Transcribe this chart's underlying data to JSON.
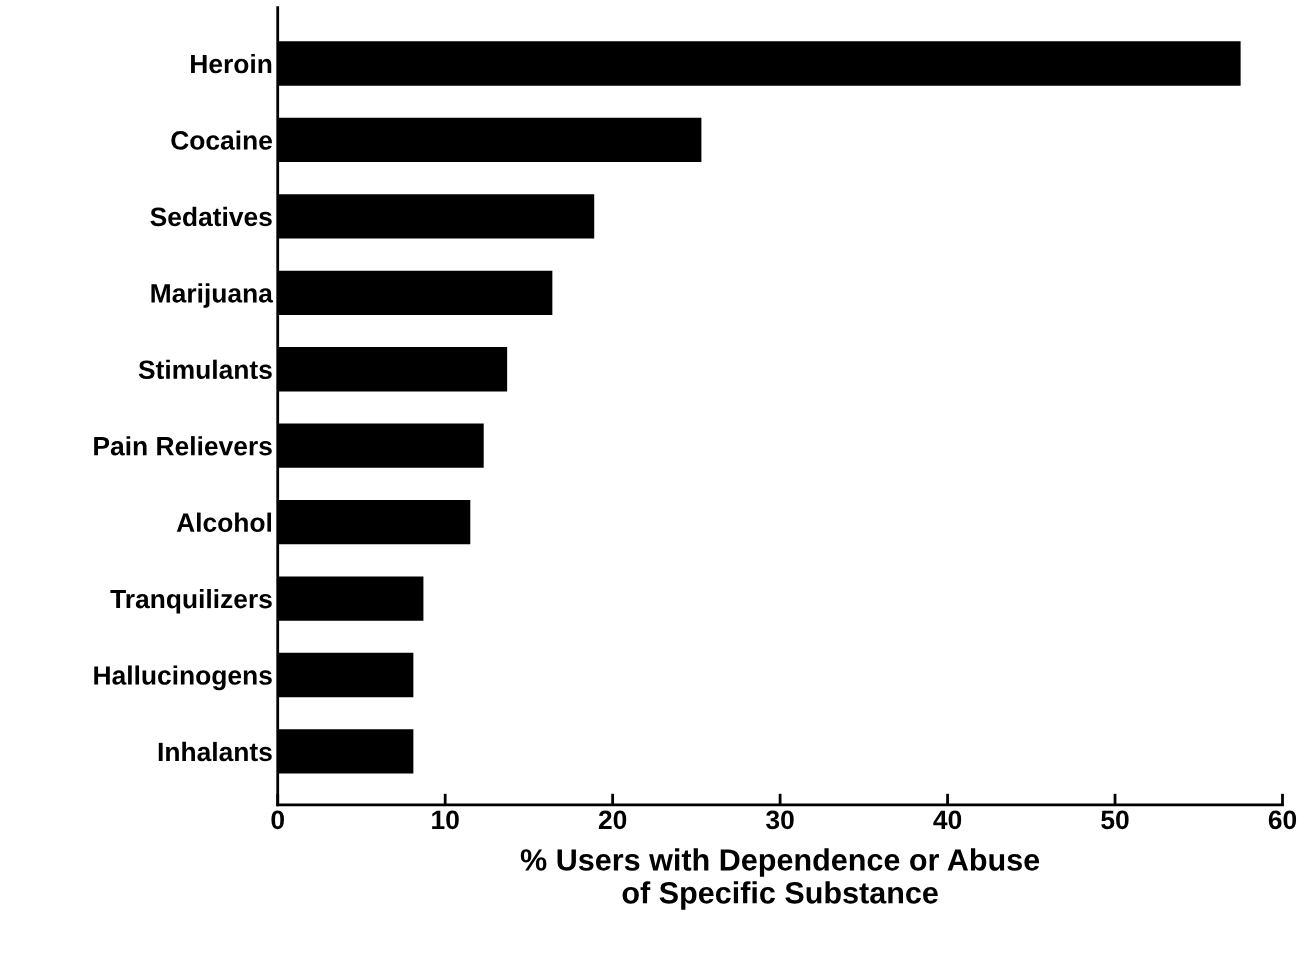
{
  "chart_data": {
    "type": "bar",
    "orientation": "horizontal",
    "xlabel": "% Users with Dependence or Abuse\nof Specific Substance",
    "categories": [
      "Heroin",
      "Cocaine",
      "Sedatives",
      "Marijuana",
      "Stimulants",
      "Pain Relievers",
      "Alcohol",
      "Tranquilizers",
      "Hallucinogens",
      "Inhalants"
    ],
    "values": [
      57.5,
      25.3,
      18.9,
      16.4,
      13.7,
      12.3,
      11.5,
      8.7,
      8.1,
      8.1
    ],
    "color": "#000000",
    "xlim": [
      0,
      60
    ],
    "xticks": [
      0,
      10,
      20,
      30,
      40,
      50,
      60
    ],
    "grid": false
  }
}
